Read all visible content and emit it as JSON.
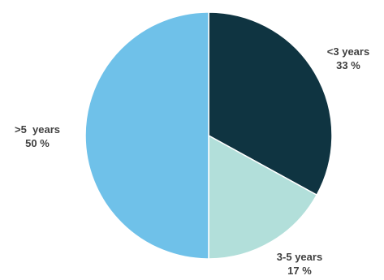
{
  "chart_data": {
    "type": "pie",
    "title": "",
    "start_angle_deg": 0,
    "direction": "clockwise",
    "slices": [
      {
        "label": "<3 years",
        "value_label": "33 %",
        "value": 33,
        "color": "#0f3441"
      },
      {
        "label": "3-5 years",
        "value_label": "17 %",
        "value": 17,
        "color": "#b2dfda"
      },
      {
        "label": ">5  years",
        "value_label": "50 %",
        "value": 50,
        "color": "#6fc1e9"
      }
    ],
    "slice_border_color": "#ffffff",
    "legend": "none"
  }
}
